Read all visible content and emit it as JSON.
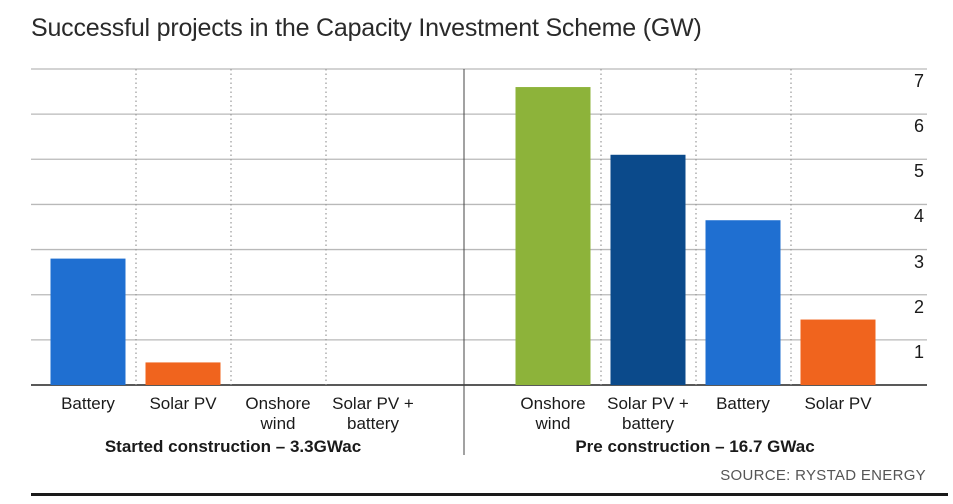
{
  "chart_data": {
    "type": "bar",
    "title": "Successful projects in the Capacity Investment Scheme (GW)",
    "ylim": [
      0,
      7
    ],
    "yticks": [
      1,
      2,
      3,
      4,
      5,
      6,
      7
    ],
    "groups": [
      {
        "label": "Started construction – 3.3GWac",
        "categories": [
          {
            "label": [
              "Battery"
            ],
            "value": 2.8,
            "color": "#1f6fd1"
          },
          {
            "label": [
              "Solar PV"
            ],
            "value": 0.5,
            "color": "#f0641e"
          },
          {
            "label": [
              "Onshore",
              "wind"
            ],
            "value": 0,
            "color": "#8db33a"
          },
          {
            "label": [
              "Solar PV +",
              "battery"
            ],
            "value": 0,
            "color": "#0b4a8b"
          }
        ]
      },
      {
        "label": "Pre construction – 16.7 GWac",
        "categories": [
          {
            "label": [
              "Onshore",
              "wind"
            ],
            "value": 6.6,
            "color": "#8db33a"
          },
          {
            "label": [
              "Solar PV +",
              "battery"
            ],
            "value": 5.1,
            "color": "#0b4a8b"
          },
          {
            "label": [
              "Battery"
            ],
            "value": 3.65,
            "color": "#1f6fd1"
          },
          {
            "label": [
              "Solar PV"
            ],
            "value": 1.45,
            "color": "#f0641e"
          }
        ]
      }
    ],
    "source": "SOURCE: RYSTAD ENERGY"
  }
}
